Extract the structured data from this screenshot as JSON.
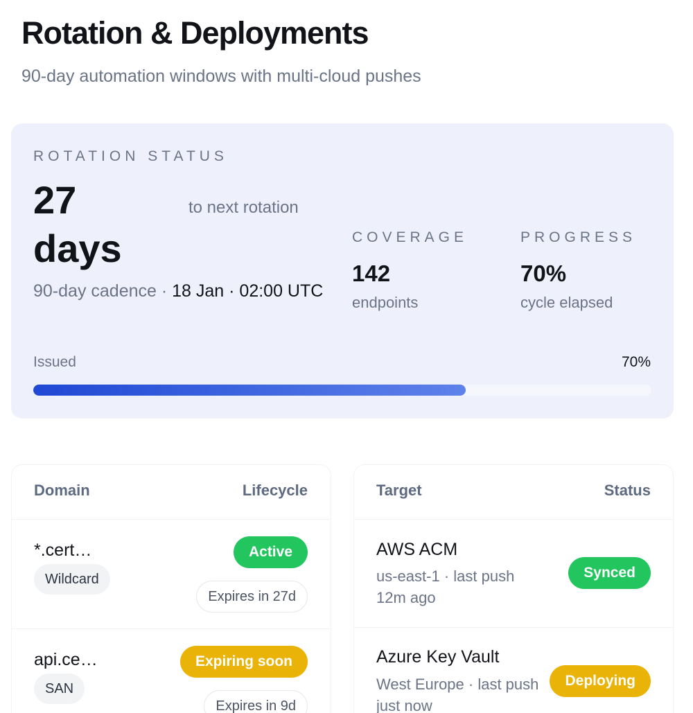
{
  "header": {
    "title": "Rotation & Deployments",
    "subtitle": "90-day automation windows with multi-cloud pushes"
  },
  "rotation": {
    "eyebrow": "ROTATION STATUS",
    "days_value": "27 days",
    "days_caption": "to next rotation",
    "cadence": "90-day cadence ·",
    "next_date": "18 Jan · 02:00 UTC",
    "coverage": {
      "label": "COVERAGE",
      "value": "142",
      "caption": "endpoints"
    },
    "progress": {
      "label": "PROGRESS",
      "value": "70%",
      "caption": "cycle elapsed"
    },
    "bar": {
      "left_label": "Issued",
      "right_label": "70%",
      "fraction": 0.7
    }
  },
  "domains": {
    "headers": {
      "domain": "Domain",
      "lifecycle": "Lifecycle"
    },
    "rows": [
      {
        "name": "*.cert…",
        "tag": "Wildcard",
        "status": "Active",
        "expires": "Expires in 27d"
      },
      {
        "name": "api.ce…",
        "tag": "SAN",
        "status": "Expiring soon",
        "expires": "Expires in 9d"
      }
    ]
  },
  "targets": {
    "headers": {
      "target": "Target",
      "status": "Status"
    },
    "rows": [
      {
        "name": "AWS ACM",
        "meta": "us-east-1 · last push 12m ago",
        "status": "Synced"
      },
      {
        "name": "Azure Key Vault",
        "meta": "West Europe · last push just now",
        "status": "Deploying"
      }
    ]
  },
  "colors": {
    "accent": "#1f48d4",
    "success": "#22c55e",
    "warning": "#eab308",
    "card_bg": "#eef1fb"
  }
}
